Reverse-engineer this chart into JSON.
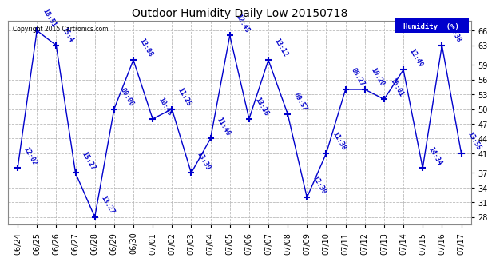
{
  "title": "Outdoor Humidity Daily Low 20150718",
  "copyright": "Copyright 2015 Cartronics.com",
  "legend_label": "Humidity  (%)",
  "background_color": "#ffffff",
  "line_color": "#0000cc",
  "grid_color": "#bbbbbb",
  "ylim": [
    26.5,
    68
  ],
  "yticks": [
    28,
    31,
    34,
    37,
    41,
    44,
    47,
    50,
    53,
    56,
    59,
    63,
    66
  ],
  "dates": [
    "06/24",
    "06/25",
    "06/26",
    "06/27",
    "06/28",
    "06/29",
    "06/30",
    "07/01",
    "07/02",
    "07/03",
    "07/04",
    "07/05",
    "07/06",
    "07/07",
    "07/08",
    "07/09",
    "07/10",
    "07/11",
    "07/12",
    "07/13",
    "07/14",
    "07/15",
    "07/16",
    "07/17"
  ],
  "values": [
    38,
    66,
    63,
    37,
    28,
    50,
    60,
    48,
    50,
    37,
    44,
    65,
    48,
    60,
    49,
    32,
    41,
    54,
    54,
    52,
    58,
    38,
    63,
    41
  ],
  "labels": [
    "12:02",
    "18:51",
    "15:4",
    "15:27",
    "13:27",
    "00:06",
    "13:08",
    "10:45",
    "11:25",
    "13:39",
    "11:40",
    "12:45",
    "13:36",
    "13:12",
    "09:57",
    "12:30",
    "11:38",
    "08:27",
    "10:20",
    "16:01",
    "12:49",
    "14:34",
    "13:38",
    "13:55"
  ]
}
